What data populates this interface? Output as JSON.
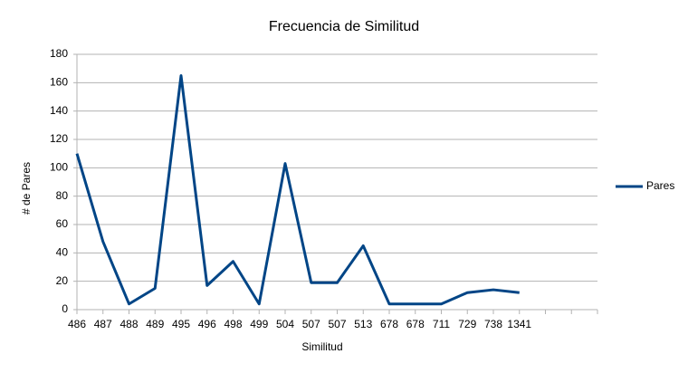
{
  "chart_data": {
    "type": "line",
    "title": "Frecuencia de Similitud",
    "x_label": "Similitud",
    "y_label": "# de Pares",
    "categories": [
      "486",
      "487",
      "488",
      "489",
      "495",
      "496",
      "498",
      "499",
      "504",
      "507",
      "507",
      "513",
      "678",
      "678",
      "711",
      "729",
      "738",
      "1341",
      null,
      null,
      null
    ],
    "series": [
      {
        "name": "Pares",
        "color": "#004586",
        "values": [
          110,
          48,
          4,
          15,
          165,
          17,
          34,
          4,
          103,
          19,
          19,
          45,
          4,
          4,
          4,
          12,
          14,
          12,
          null,
          null,
          null
        ]
      }
    ],
    "ylim": [
      0,
      180
    ],
    "yticks": [
      0,
      20,
      40,
      60,
      80,
      100,
      120,
      140,
      160,
      180
    ],
    "grid": true,
    "legend": "right"
  }
}
